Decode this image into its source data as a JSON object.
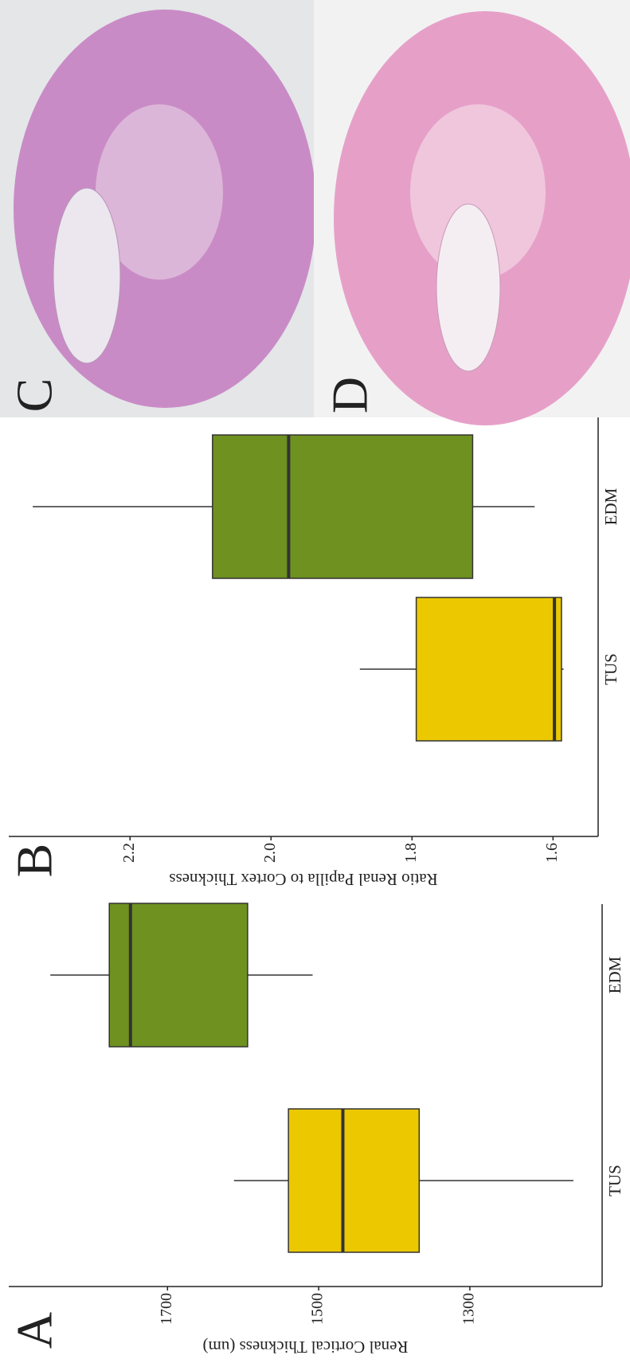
{
  "chart_data": [
    {
      "type": "box",
      "panel_label": "A",
      "y_label": "Renal Cortical Thickness (um)",
      "categories": [
        "TUS",
        "EDM"
      ],
      "colors": [
        "#ebc800",
        "#6e9120"
      ],
      "boxes": [
        {
          "whislo": 1163,
          "q1": 1367,
          "med": 1468,
          "q3": 1540,
          "whishi": 1612
        },
        {
          "whislo": 1508,
          "q1": 1594,
          "med": 1749,
          "q3": 1777,
          "whishi": 1855
        }
      ],
      "ylim": [
        1125,
        1910
      ],
      "yticks": [
        1300,
        1500,
        1700
      ]
    },
    {
      "type": "box",
      "panel_label": "B",
      "y_label": "Ratio Renal Papilla to Cortex Thickness",
      "categories": [
        "TUS",
        "EDM"
      ],
      "colors": [
        "#ebc800",
        "#6e9120"
      ],
      "boxes": [
        {
          "whislo": 1.585,
          "q1": 1.588,
          "med": 1.598,
          "q3": 1.794,
          "whishi": 1.874
        },
        {
          "whislo": 1.626,
          "q1": 1.714,
          "med": 1.975,
          "q3": 2.083,
          "whishi": 2.338
        }
      ],
      "ylim": [
        1.536,
        2.372
      ],
      "yticks": [
        1.6,
        1.8,
        {
          "value": 2,
          "label": "2.0"
        },
        2.2
      ]
    }
  ],
  "images": [
    {
      "label": "C"
    },
    {
      "label": "D"
    }
  ]
}
